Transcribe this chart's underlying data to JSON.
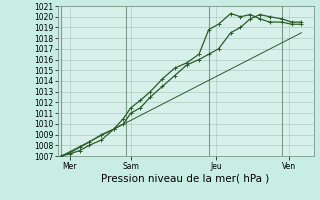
{
  "title": "Pression niveau de la mer( hPa )",
  "bg_color": "#c8eee4",
  "plot_bg_color": "#d8f0ea",
  "line_color": "#2a5c2a",
  "grid_color": "#b0ccc4",
  "ylim": [
    1007,
    1021
  ],
  "yticks": [
    1007,
    1008,
    1009,
    1010,
    1011,
    1012,
    1013,
    1014,
    1015,
    1016,
    1017,
    1018,
    1019,
    1020,
    1021
  ],
  "day_labels": [
    "Mer",
    "Sam",
    "Jeu",
    "Ven"
  ],
  "day_positions": [
    0.5,
    3.0,
    6.5,
    9.5
  ],
  "vline_positions": [
    0.15,
    2.8,
    6.2,
    9.2
  ],
  "xlim": [
    0.0,
    10.5
  ],
  "line1_x": [
    0.15,
    0.5,
    0.9,
    1.3,
    1.8,
    2.3,
    2.7,
    3.0,
    3.4,
    3.8,
    4.3,
    4.8,
    5.3,
    5.8,
    6.2,
    6.6,
    7.1,
    7.5,
    7.9,
    8.3,
    8.7,
    9.2,
    9.6,
    10.0
  ],
  "line1_y": [
    1007.0,
    1007.2,
    1007.5,
    1008.0,
    1008.5,
    1009.5,
    1010.0,
    1011.0,
    1011.5,
    1012.5,
    1013.5,
    1014.5,
    1015.5,
    1016.0,
    1016.5,
    1017.0,
    1018.5,
    1019.0,
    1019.8,
    1020.2,
    1020.0,
    1019.8,
    1019.5,
    1019.5
  ],
  "line2_x": [
    0.15,
    0.5,
    0.9,
    1.3,
    1.8,
    2.3,
    2.7,
    3.0,
    3.4,
    3.8,
    4.3,
    4.8,
    5.3,
    5.8,
    6.2,
    6.6,
    7.1,
    7.5,
    7.9,
    8.3,
    8.7,
    9.2,
    9.6,
    10.0
  ],
  "line2_y": [
    1007.0,
    1007.3,
    1007.8,
    1008.3,
    1009.0,
    1009.5,
    1010.5,
    1011.5,
    1012.2,
    1013.0,
    1014.2,
    1015.2,
    1015.7,
    1016.5,
    1018.8,
    1019.3,
    1020.3,
    1020.0,
    1020.2,
    1019.8,
    1019.5,
    1019.5,
    1019.3,
    1019.3
  ],
  "line3_x": [
    0.15,
    10.0
  ],
  "line3_y": [
    1007.0,
    1018.5
  ],
  "tick_fontsize": 5.5,
  "label_fontsize": 7.5
}
